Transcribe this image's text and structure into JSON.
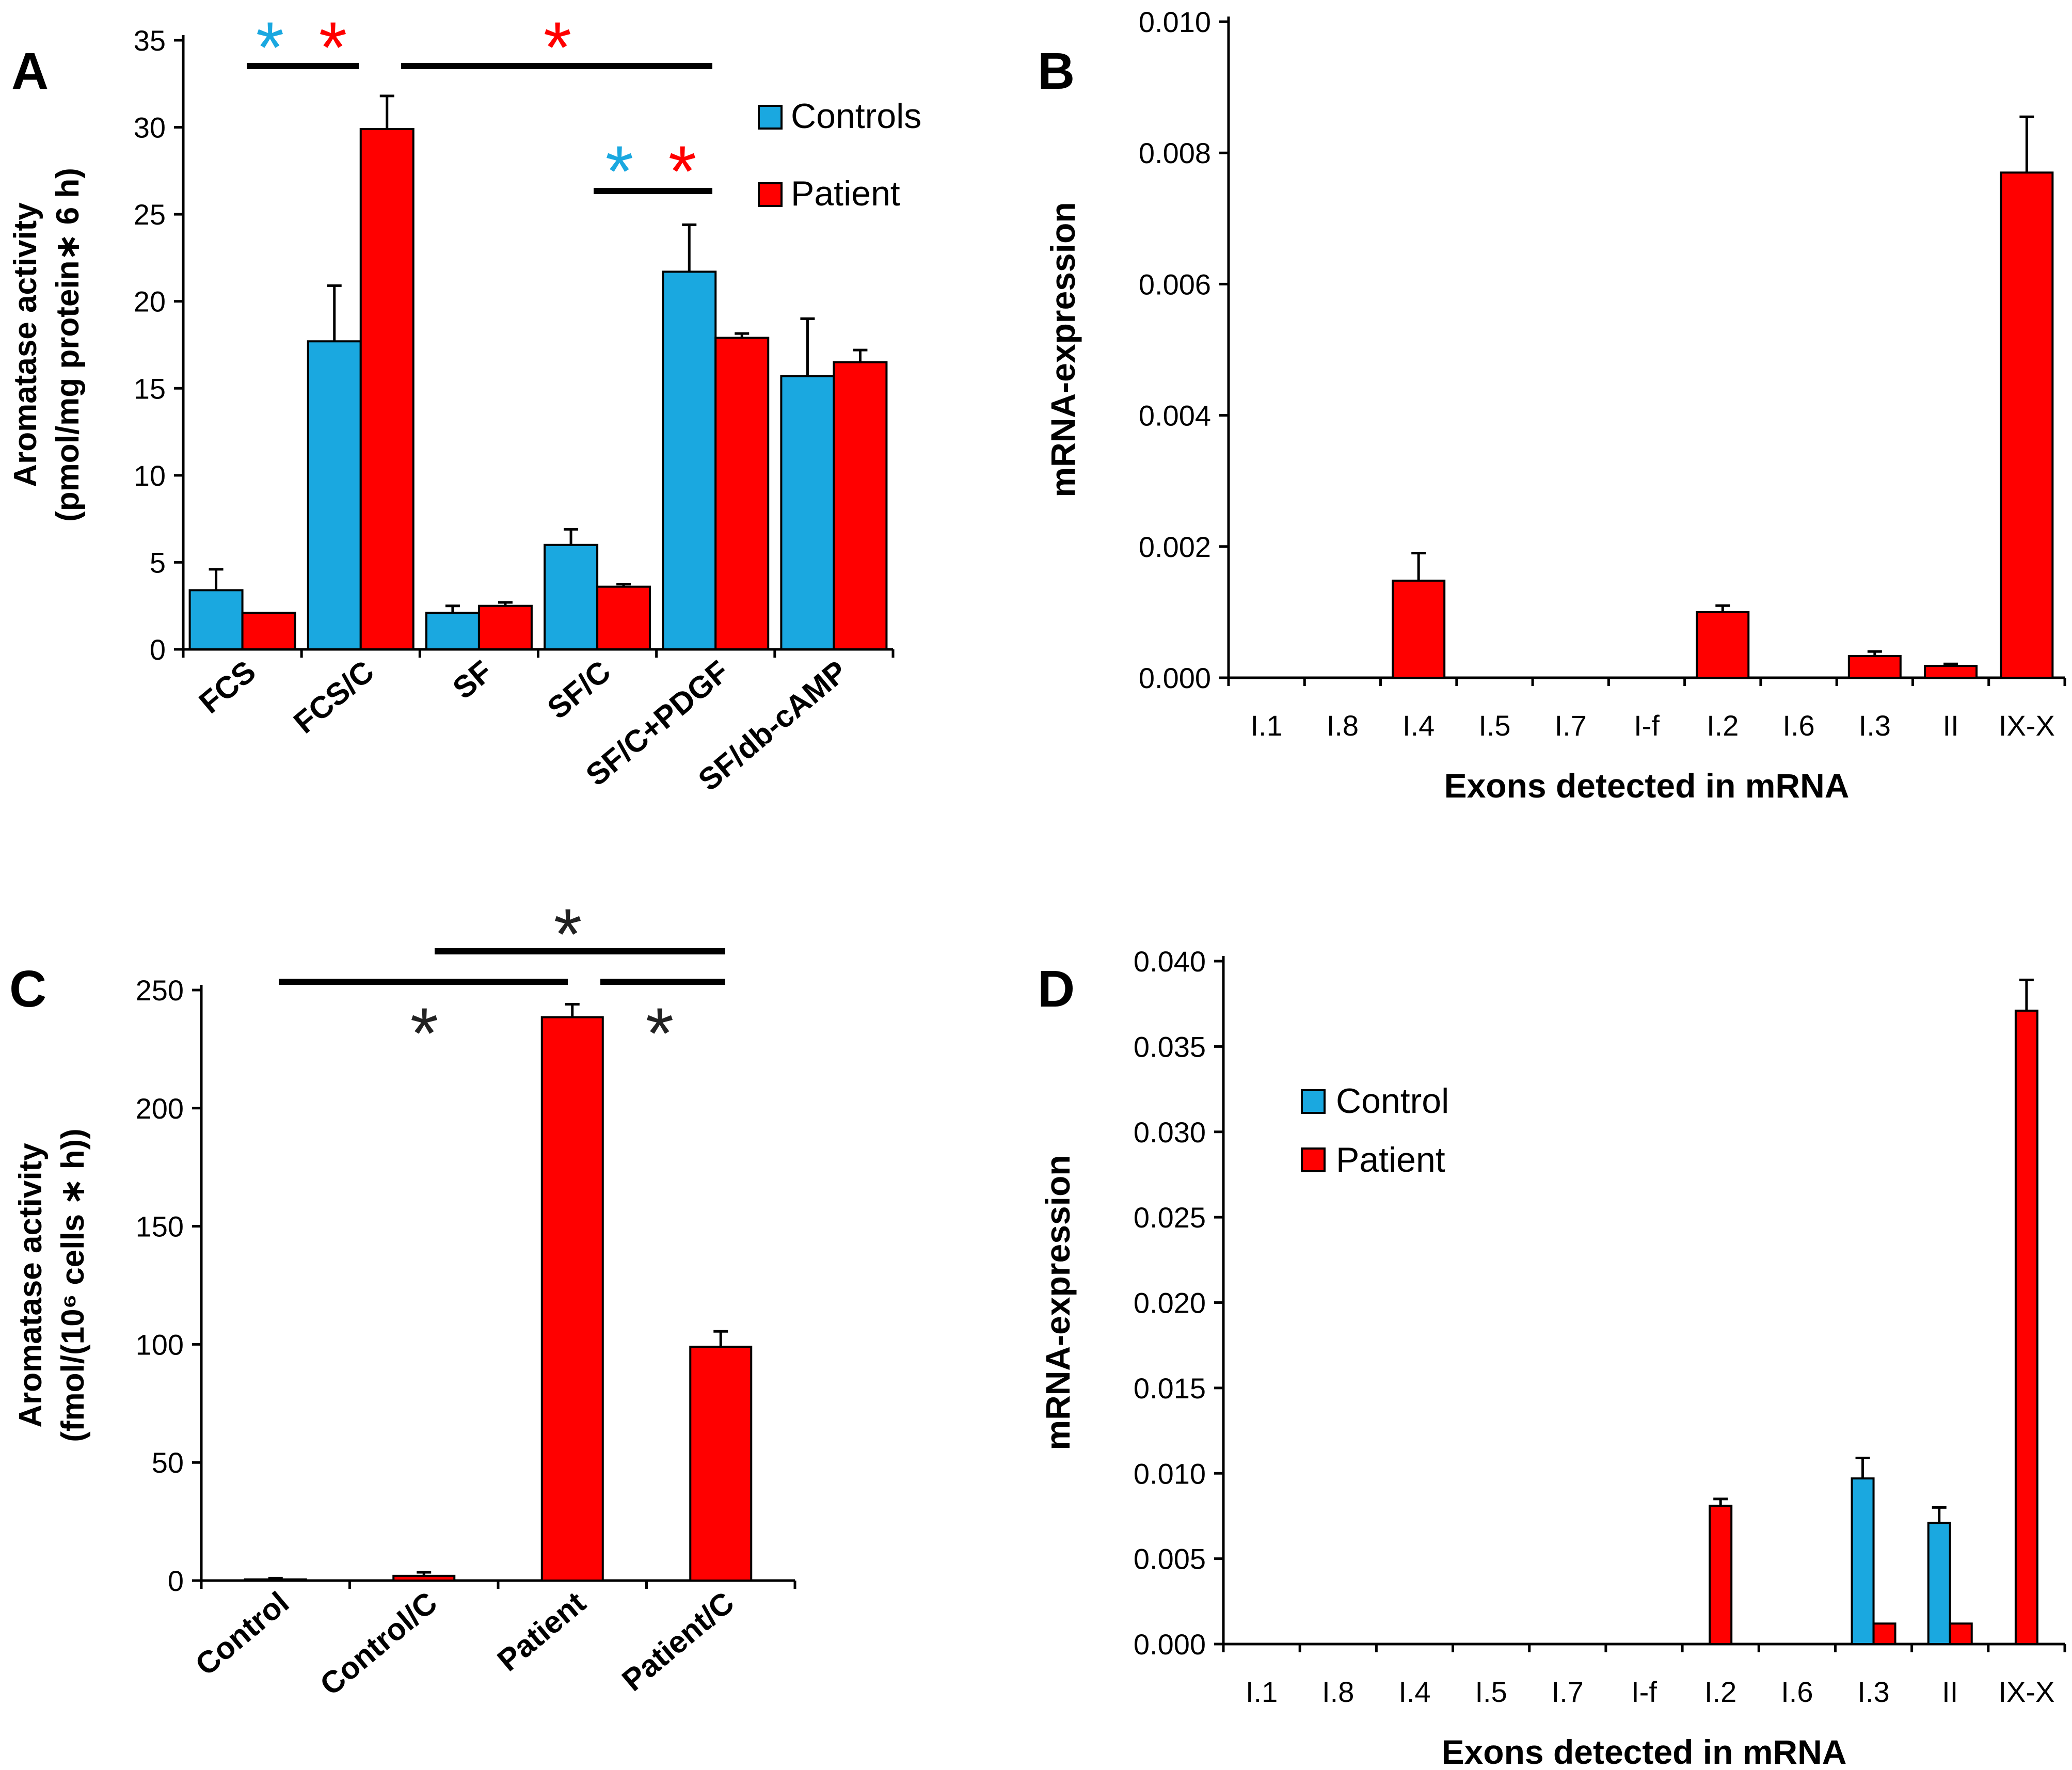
{
  "colors": {
    "controls": "#1aa8e0",
    "patient": "#ff0000",
    "axis": "#000000",
    "star_blue": "#1aa8e0",
    "star_red": "#ff0000",
    "star_black": "#222222"
  },
  "chart_data": [
    {
      "panel": "A",
      "type": "bar",
      "ylabel_line1": "Aromatase activity",
      "ylabel_line2": "(pmol/mg protein∗ 6 h)",
      "categories": [
        "FCS",
        "FCS/C",
        "SF",
        "SF/C",
        "SF/C+PDGF",
        "SF/db-cAMP"
      ],
      "ylim": [
        0,
        35
      ],
      "yticks": [
        "0",
        "5",
        "10",
        "15",
        "20",
        "25",
        "30",
        "35"
      ],
      "series": [
        {
          "name": "Controls",
          "values": [
            3.4,
            17.7,
            2.1,
            6.0,
            21.7,
            15.7
          ],
          "errors": [
            1.2,
            3.2,
            0.4,
            0.9,
            2.7,
            3.3
          ]
        },
        {
          "name": "Patient",
          "values": [
            2.1,
            29.9,
            2.5,
            3.6,
            17.9,
            16.5
          ],
          "errors": [
            0.0,
            1.9,
            0.2,
            0.15,
            0.25,
            0.7
          ]
        }
      ],
      "legend_position": "top-right",
      "significance_marker": "*"
    },
    {
      "panel": "B",
      "type": "bar",
      "ylabel": "mRNA-expression",
      "xlabel": "Exons detected in mRNA",
      "categories": [
        "I.1",
        "I.8",
        "I.4",
        "I.5",
        "I.7",
        "I-f",
        "I.2",
        "I.6",
        "I.3",
        "II",
        "IX-X"
      ],
      "ylim": [
        0,
        0.01
      ],
      "yticks": [
        "0.000",
        "0.002",
        "0.004",
        "0.006",
        "0.008",
        "0.010"
      ],
      "series": [
        {
          "name": "Patient",
          "values": [
            0,
            0,
            0.00148,
            0,
            0,
            0,
            0.001,
            0,
            0.00033,
            0.00018,
            0.0077
          ],
          "errors": [
            0,
            0,
            0.00042,
            0,
            0,
            0,
            0.0001,
            0,
            7e-05,
            3e-05,
            0.00085
          ]
        }
      ]
    },
    {
      "panel": "C",
      "type": "bar",
      "ylabel_line1": "Aromatase activity",
      "ylabel_line2": "(fmol/(10⁶ cells ∗ h))",
      "categories": [
        "Control",
        "Control/C",
        "Patient",
        "Patient/C"
      ],
      "ylim": [
        0,
        250
      ],
      "yticks": [
        "0",
        "50",
        "100",
        "150",
        "200",
        "250"
      ],
      "series": [
        {
          "name": "Patient",
          "values": [
            0.5,
            2.0,
            238.5,
            99.0
          ],
          "errors": [
            0.5,
            1.5,
            5.5,
            6.5
          ]
        }
      ],
      "significance_marker": "*"
    },
    {
      "panel": "D",
      "type": "bar",
      "ylabel": "mRNA-expression",
      "xlabel": "Exons detected in mRNA",
      "categories": [
        "I.1",
        "I.8",
        "I.4",
        "I.5",
        "I.7",
        "I-f",
        "I.2",
        "I.6",
        "I.3",
        "II",
        "IX-X"
      ],
      "ylim": [
        0,
        0.04
      ],
      "yticks": [
        "0.000",
        "0.005",
        "0.010",
        "0.015",
        "0.020",
        "0.025",
        "0.030",
        "0.035",
        "0.040"
      ],
      "series": [
        {
          "name": "Control",
          "values": [
            0,
            0,
            0,
            0,
            0,
            0,
            0,
            0,
            0.0097,
            0.0071,
            0
          ],
          "errors": [
            0,
            0,
            0,
            0,
            0,
            0,
            0,
            0,
            0.0012,
            0.0009,
            0
          ]
        },
        {
          "name": "Patient",
          "values": [
            0,
            0,
            0,
            0,
            0,
            0,
            0.0081,
            0,
            0.0012,
            0.0012,
            0.0371
          ],
          "errors": [
            0,
            0,
            0,
            0,
            0,
            0,
            0.0004,
            0,
            0,
            0,
            0.0018
          ]
        }
      ],
      "legend_position": "upper-left"
    }
  ]
}
